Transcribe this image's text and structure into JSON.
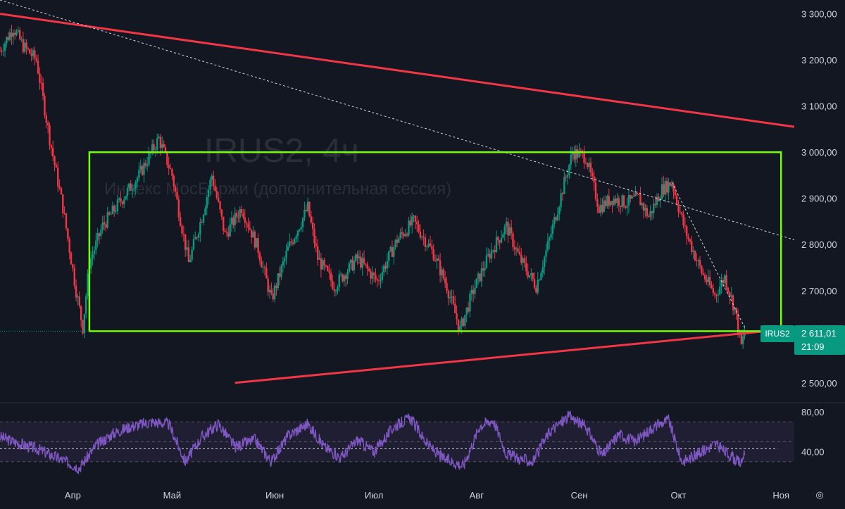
{
  "symbol": "IRUS2",
  "watermark": {
    "title": "IRUS2, 4ч",
    "subtitle": "Индекс МосБиржи (дополнительная сессия)"
  },
  "last_price": {
    "symbol_badge": "IRUS2",
    "price": "2 611,01",
    "countdown": "21:09",
    "color": "#089981"
  },
  "colors": {
    "background": "#131722",
    "up_candle": "#089981",
    "down_candle": "#f23645",
    "channel_line": "#f23645",
    "box": "#76ff03",
    "dashed_line": "#d1d4dc",
    "rsi_line": "#7e57c2",
    "rsi_band": "#2a2440"
  },
  "icons": {
    "settings": "settings-icon"
  },
  "chart_data": [
    {
      "type": "candlestick",
      "title": "",
      "ylim": [
        2460,
        3330
      ],
      "y_ticks": [
        {
          "value": 3300,
          "label": "3 300,00"
        },
        {
          "value": 3200,
          "label": "3 200,00"
        },
        {
          "value": 3100,
          "label": "3 100,00"
        },
        {
          "value": 3000,
          "label": "3 000,00"
        },
        {
          "value": 2900,
          "label": "2 900,00"
        },
        {
          "value": 2800,
          "label": "2 800,00"
        },
        {
          "value": 2700,
          "label": "2 700,00"
        },
        {
          "value": 2500,
          "label": "2 500,00"
        }
      ],
      "x_range": [
        "2024-03-10",
        "2024-11-05"
      ],
      "x_ticks": [
        {
          "date": "2024-04-01",
          "label": "Апр"
        },
        {
          "date": "2024-05-01",
          "label": "Май"
        },
        {
          "date": "2024-06-01",
          "label": "Июн"
        },
        {
          "date": "2024-07-01",
          "label": "Июл"
        },
        {
          "date": "2024-08-01",
          "label": "Авг"
        },
        {
          "date": "2024-09-01",
          "label": "Сен"
        },
        {
          "date": "2024-10-01",
          "label": "Окт"
        },
        {
          "date": "2024-11-01",
          "label": "Ноя"
        }
      ],
      "price_path": [
        [
          "2024-03-10",
          3220
        ],
        [
          "2024-03-14",
          3270
        ],
        [
          "2024-03-17",
          3230
        ],
        [
          "2024-03-21",
          3200
        ],
        [
          "2024-03-25",
          3030
        ],
        [
          "2024-03-29",
          2880
        ],
        [
          "2024-04-02",
          2700
        ],
        [
          "2024-04-04",
          2620
        ],
        [
          "2024-04-06",
          2760
        ],
        [
          "2024-04-10",
          2840
        ],
        [
          "2024-04-15",
          2890
        ],
        [
          "2024-04-21",
          2950
        ],
        [
          "2024-04-27",
          3030
        ],
        [
          "2024-05-01",
          2950
        ],
        [
          "2024-05-06",
          2760
        ],
        [
          "2024-05-10",
          2860
        ],
        [
          "2024-05-13",
          2950
        ],
        [
          "2024-05-17",
          2820
        ],
        [
          "2024-05-22",
          2880
        ],
        [
          "2024-05-27",
          2790
        ],
        [
          "2024-05-31",
          2680
        ],
        [
          "2024-06-05",
          2790
        ],
        [
          "2024-06-11",
          2880
        ],
        [
          "2024-06-14",
          2770
        ],
        [
          "2024-06-19",
          2710
        ],
        [
          "2024-06-26",
          2770
        ],
        [
          "2024-07-02",
          2720
        ],
        [
          "2024-07-08",
          2810
        ],
        [
          "2024-07-13",
          2850
        ],
        [
          "2024-07-19",
          2780
        ],
        [
          "2024-07-23",
          2710
        ],
        [
          "2024-07-27",
          2615
        ],
        [
          "2024-07-31",
          2700
        ],
        [
          "2024-08-05",
          2780
        ],
        [
          "2024-08-10",
          2840
        ],
        [
          "2024-08-14",
          2770
        ],
        [
          "2024-08-19",
          2710
        ],
        [
          "2024-08-23",
          2810
        ],
        [
          "2024-08-27",
          2920
        ],
        [
          "2024-08-30",
          3000
        ],
        [
          "2024-09-03",
          2990
        ],
        [
          "2024-09-07",
          2880
        ],
        [
          "2024-09-11",
          2900
        ],
        [
          "2024-09-15",
          2890
        ],
        [
          "2024-09-19",
          2900
        ],
        [
          "2024-09-22",
          2860
        ],
        [
          "2024-09-26",
          2920
        ],
        [
          "2024-09-29",
          2935
        ],
        [
          "2024-10-03",
          2830
        ],
        [
          "2024-10-08",
          2740
        ],
        [
          "2024-10-12",
          2690
        ],
        [
          "2024-10-15",
          2730
        ],
        [
          "2024-10-18",
          2660
        ],
        [
          "2024-10-20",
          2580
        ],
        [
          "2024-10-21",
          2611
        ]
      ],
      "drawings": {
        "upper_channel": {
          "from": [
            "2024-03-10",
            3300
          ],
          "to": [
            "2024-11-05",
            3055
          ]
        },
        "lower_channel": {
          "from": [
            "2024-05-20",
            2500
          ],
          "to": [
            "2024-11-05",
            2618
          ]
        },
        "dashed_trend": {
          "from": [
            "2024-03-10",
            3330
          ],
          "to": [
            "2024-11-05",
            2810
          ]
        },
        "dashed_short": {
          "from": [
            "2024-09-29",
            2935
          ],
          "to": [
            "2024-10-21",
            2620
          ]
        },
        "box": {
          "x_from": "2024-04-06",
          "x_to": "2024-11-01",
          "y_from": 2612,
          "y_to": 3000
        },
        "last_price_line": {
          "from": "2024-03-10",
          "to": "2024-04-06",
          "value": 2612
        }
      }
    },
    {
      "type": "line",
      "title": "",
      "series": [
        {
          "points": [
            [
              "2024-03-10",
              55
            ],
            [
              "2024-03-16",
              48
            ],
            [
              "2024-03-22",
              42
            ],
            [
              "2024-03-28",
              33
            ],
            [
              "2024-04-03",
              24
            ],
            [
              "2024-04-08",
              46
            ],
            [
              "2024-04-13",
              58
            ],
            [
              "2024-04-18",
              65
            ],
            [
              "2024-04-25",
              70
            ],
            [
              "2024-04-30",
              68
            ],
            [
              "2024-05-05",
              30
            ],
            [
              "2024-05-10",
              55
            ],
            [
              "2024-05-15",
              68
            ],
            [
              "2024-05-20",
              45
            ],
            [
              "2024-05-26",
              52
            ],
            [
              "2024-05-31",
              30
            ],
            [
              "2024-06-05",
              56
            ],
            [
              "2024-06-11",
              68
            ],
            [
              "2024-06-16",
              45
            ],
            [
              "2024-06-21",
              34
            ],
            [
              "2024-06-26",
              52
            ],
            [
              "2024-07-01",
              40
            ],
            [
              "2024-07-07",
              65
            ],
            [
              "2024-07-12",
              74
            ],
            [
              "2024-07-17",
              48
            ],
            [
              "2024-07-22",
              33
            ],
            [
              "2024-07-28",
              26
            ],
            [
              "2024-08-02",
              66
            ],
            [
              "2024-08-06",
              72
            ],
            [
              "2024-08-10",
              38
            ],
            [
              "2024-08-14",
              33
            ],
            [
              "2024-08-18",
              30
            ],
            [
              "2024-08-23",
              60
            ],
            [
              "2024-08-29",
              76
            ],
            [
              "2024-09-03",
              65
            ],
            [
              "2024-09-08",
              36
            ],
            [
              "2024-09-13",
              58
            ],
            [
              "2024-09-18",
              50
            ],
            [
              "2024-09-23",
              64
            ],
            [
              "2024-09-28",
              72
            ],
            [
              "2024-10-02",
              30
            ],
            [
              "2024-10-07",
              38
            ],
            [
              "2024-10-12",
              48
            ],
            [
              "2024-10-17",
              35
            ],
            [
              "2024-10-20",
              28
            ],
            [
              "2024-10-21",
              42
            ]
          ]
        }
      ],
      "ylim": [
        13,
        87
      ],
      "y_ticks": [
        {
          "value": 80,
          "label": "80,00"
        },
        {
          "value": 40,
          "label": "40,00"
        }
      ],
      "bands": {
        "upper": 70,
        "lower": 30,
        "middle": 50
      },
      "reference_line": {
        "value": 43,
        "from": "2024-03-10",
        "to": "2024-10-31"
      }
    }
  ]
}
